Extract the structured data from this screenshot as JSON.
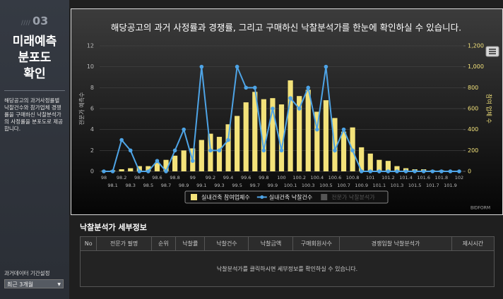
{
  "sidebar": {
    "step": "03",
    "title": [
      "미래예측",
      "분포도",
      "확인"
    ],
    "description": "해당공고의 과거사정률별 낙찰건수와 참가업체 경쟁률을 구매하신 낙찰분석가의 사정률을 분포도로 제공합니다.",
    "period_label": "과거데이터 기간설정",
    "period_value": "최근 3개월"
  },
  "chart_data": {
    "type": "bar_line",
    "title": "해당공고의 과거 사정률과 경쟁률, 그리고 구매하신 낙찰분석가를 한눈에 확인하실 수 있습니다.",
    "y_label": "전문가 예측수",
    "y2_label": "참여 업체 수",
    "credit": "BIDFORM",
    "categories": [
      "98",
      "98.1",
      "98.2",
      "98.3",
      "98.4",
      "98.5",
      "98.6",
      "98.7",
      "98.8",
      "98.9",
      "99",
      "99.1",
      "99.2",
      "99.3",
      "99.4",
      "99.5",
      "99.6",
      "99.7",
      "99.8",
      "99.9",
      "100",
      "100.1",
      "100.2",
      "100.3",
      "100.4",
      "100.5",
      "100.6",
      "100.7",
      "100.8",
      "100.9",
      "101",
      "101.1",
      "101.2",
      "101.3",
      "101.4",
      "101.5",
      "101.6",
      "101.7",
      "101.8",
      "101.9",
      "102"
    ],
    "series": [
      {
        "name": "실내건축 참여업체수",
        "type": "bar",
        "axis": "y2",
        "color": "#f3e27a",
        "values": [
          5,
          10,
          20,
          30,
          50,
          50,
          80,
          110,
          150,
          200,
          220,
          300,
          360,
          330,
          450,
          530,
          660,
          760,
          690,
          700,
          640,
          870,
          720,
          780,
          570,
          680,
          510,
          380,
          420,
          230,
          170,
          110,
          100,
          50,
          30,
          20,
          20,
          10,
          10,
          5,
          0
        ]
      },
      {
        "name": "실내건축 낙찰건수",
        "type": "line",
        "axis": "y",
        "color": "#4ea4e6",
        "values": [
          0,
          0,
          3,
          2,
          0,
          0,
          1,
          0,
          2,
          4,
          1,
          10,
          2,
          2,
          3,
          10,
          8,
          8,
          2,
          6,
          2,
          7,
          6,
          8,
          4,
          10,
          2,
          4,
          2,
          0,
          0,
          0,
          0,
          0,
          0,
          0,
          0,
          0,
          0,
          0,
          0
        ]
      },
      {
        "name": "전문가 낙찰분석가",
        "type": "bar",
        "axis": "y",
        "color": "#555555",
        "visible": false
      }
    ],
    "ylim": [
      0,
      12
    ],
    "yticks": [
      0,
      2,
      4,
      6,
      8,
      10,
      12
    ],
    "y2lim": [
      0,
      1200
    ],
    "y2ticks": [
      0,
      200,
      400,
      600,
      800,
      {
        "value": 1000,
        "label": "1,000"
      },
      {
        "value": 1200,
        "label": "1,200"
      }
    ],
    "grid": true,
    "legend": "bottom"
  },
  "details": {
    "title": "낙찰분석가 세부정보",
    "columns": [
      "No",
      "전문가 필명",
      "순위",
      "낙찰률",
      "낙찰건수",
      "낙찰금액",
      "구매회원사수",
      "경쟁입찰 낙찰분석가",
      "제시시간"
    ],
    "empty_message": "낙찰분석가를 클릭하시면 세부정보를 확인하실 수 있습니다."
  }
}
